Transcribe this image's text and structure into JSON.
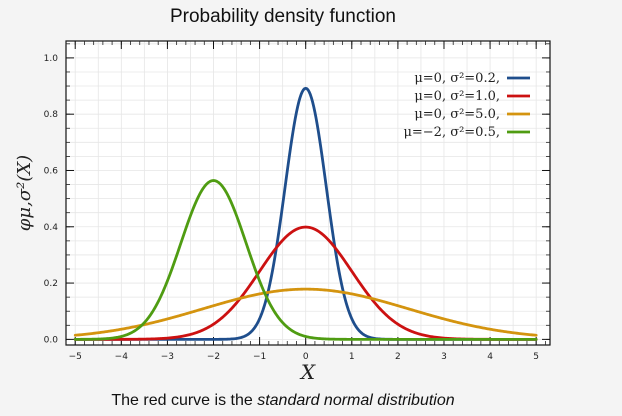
{
  "chart_data": {
    "type": "line",
    "title": "Probability density function",
    "xlabel": "X",
    "ylabel": "φμ,σ²(X)",
    "xlim": [
      -5.2,
      5.3
    ],
    "ylim": [
      -0.02,
      1.06
    ],
    "xticks": [
      -5,
      -4,
      -3,
      -2,
      -1,
      0,
      1,
      2,
      3,
      4,
      5
    ],
    "yticks": [
      0.0,
      0.2,
      0.4,
      0.6,
      0.8,
      1.0
    ],
    "ytick_labels": [
      "0.0",
      "0.2",
      "0.4",
      "0.6",
      "0.8",
      "1.0"
    ],
    "xtick_labels": [
      "−5",
      "−4",
      "−3",
      "−2",
      "−1",
      "0",
      "1",
      "2",
      "3",
      "4",
      "5"
    ],
    "x_range": [
      -5,
      5
    ],
    "grid": true,
    "legend_position": "top-right",
    "series": [
      {
        "name": "μ=0,   σ²=0.2,",
        "mu": 0,
        "sigma2": 0.2,
        "color": "#1f4e8c"
      },
      {
        "name": "μ=0,   σ²=1.0,",
        "mu": 0,
        "sigma2": 1.0,
        "color": "#cc1111"
      },
      {
        "name": "μ=0,   σ²=5.0,",
        "mu": 0,
        "sigma2": 5.0,
        "color": "#d4940f"
      },
      {
        "name": "μ=−2, σ²=0.5,",
        "mu": -2,
        "sigma2": 0.5,
        "color": "#4f9c12"
      }
    ]
  },
  "caption": {
    "prefix": "The red curve is the ",
    "emphasis": "standard normal distribution"
  }
}
